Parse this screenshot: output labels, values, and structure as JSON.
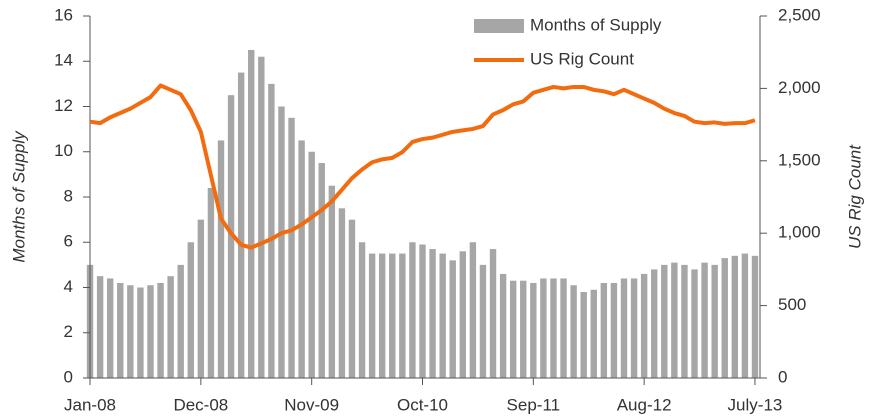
{
  "chart_data": {
    "type": "bar_line",
    "categories": [
      "Jan-08",
      null,
      null,
      null,
      null,
      null,
      null,
      null,
      null,
      null,
      null,
      "Dec-08",
      null,
      null,
      null,
      null,
      null,
      null,
      null,
      null,
      null,
      null,
      "Nov-09",
      null,
      null,
      null,
      null,
      null,
      null,
      null,
      null,
      null,
      null,
      "Oct-10",
      null,
      null,
      null,
      null,
      null,
      null,
      null,
      null,
      null,
      null,
      "Sep-11",
      null,
      null,
      null,
      null,
      null,
      null,
      null,
      null,
      null,
      null,
      "Aug-12",
      null,
      null,
      null,
      null,
      null,
      null,
      null,
      null,
      null,
      null,
      "July-13"
    ],
    "series": [
      {
        "name": "Months of Supply",
        "color": "#a6a6a6",
        "kind": "bar",
        "axis": "y",
        "values": [
          5.0,
          4.5,
          4.4,
          4.2,
          4.1,
          4.0,
          4.1,
          4.2,
          4.5,
          5.0,
          6.0,
          7.0,
          8.4,
          10.5,
          12.5,
          13.5,
          14.5,
          14.2,
          13.0,
          12.0,
          11.5,
          10.5,
          10.0,
          9.5,
          8.5,
          7.5,
          7.0,
          6.0,
          5.5,
          5.5,
          5.5,
          5.5,
          6.0,
          5.9,
          5.7,
          5.5,
          5.2,
          5.6,
          6.0,
          5.0,
          5.7,
          4.6,
          4.3,
          4.3,
          4.2,
          4.4,
          4.4,
          4.4,
          4.1,
          3.8,
          3.9,
          4.2,
          4.2,
          4.4,
          4.4,
          4.6,
          4.8,
          5.0,
          5.1,
          5.0,
          4.8,
          5.1,
          5.0,
          5.3,
          5.4,
          5.5,
          5.4
        ]
      },
      {
        "name": "US Rig Count",
        "color": "#f26b0f",
        "kind": "line",
        "axis": "y2",
        "values": [
          1770,
          1760,
          1800,
          1830,
          1860,
          1900,
          1940,
          2020,
          1990,
          1960,
          1850,
          1700,
          1400,
          1100,
          1000,
          920,
          900,
          930,
          960,
          1000,
          1020,
          1060,
          1110,
          1160,
          1220,
          1300,
          1380,
          1440,
          1490,
          1510,
          1520,
          1560,
          1630,
          1650,
          1660,
          1680,
          1700,
          1710,
          1720,
          1740,
          1820,
          1850,
          1890,
          1910,
          1970,
          1990,
          2010,
          2000,
          2010,
          2010,
          1990,
          1980,
          1960,
          1990,
          1960,
          1930,
          1900,
          1860,
          1830,
          1810,
          1770,
          1760,
          1765,
          1755,
          1760,
          1760,
          1780
        ]
      }
    ],
    "y_label": "Months of Supply",
    "y2_label": "US Rig Count",
    "ylim": [
      0,
      16
    ],
    "yticks": [
      0,
      2,
      4,
      6,
      8,
      10,
      12,
      14,
      16
    ],
    "y2lim": [
      0,
      2500
    ],
    "y2ticks": [
      0,
      500,
      {
        "value": 1000,
        "label": "1,000"
      },
      {
        "value": 1500,
        "label": "1,500"
      },
      {
        "value": 2000,
        "label": "2,000"
      },
      {
        "value": 2500,
        "label": "2,500"
      }
    ],
    "legend": "upper right"
  }
}
